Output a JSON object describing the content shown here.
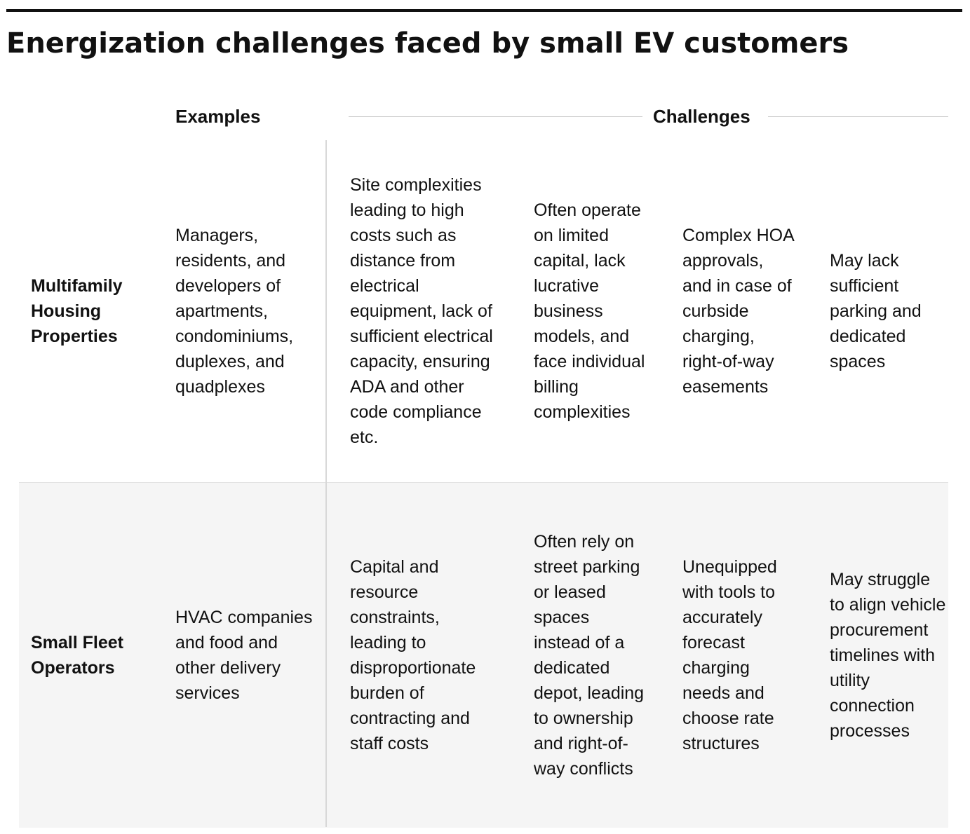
{
  "title": "Energization challenges faced by small EV customers",
  "headers": {
    "examples": "Examples",
    "challenges": "Challenges"
  },
  "rows": [
    {
      "label": "Multifamily Housing Properties",
      "example": "Managers, residents, and developers of apartments, condominiums, duplexes, and quadplexes",
      "challenges": [
        "Site complexities leading to high costs such as distance from electrical equipment, lack of sufficient electrical capacity, ensuring ADA and other code compliance etc.",
        "Often operate on limited capital, lack lucrative business models, and face individual billing complexities",
        "Complex HOA approvals, and in case of curbside charging, right-of-way easements",
        "May lack sufficient parking and dedicated spaces"
      ]
    },
    {
      "label": "Small Fleet Operators",
      "example": "HVAC companies and food and other delivery services",
      "challenges": [
        "Capital and resource constraints, leading to disproportionate burden of contracting and staff costs",
        "Often rely on street parking or leased spaces instead of a dedicated depot, leading to ownership and right-of-way conflicts",
        "Unequipped with tools to accurately forecast charging needs and choose rate structures",
        "May struggle to align vehicle procurement timelines with utility connection processes"
      ]
    }
  ]
}
